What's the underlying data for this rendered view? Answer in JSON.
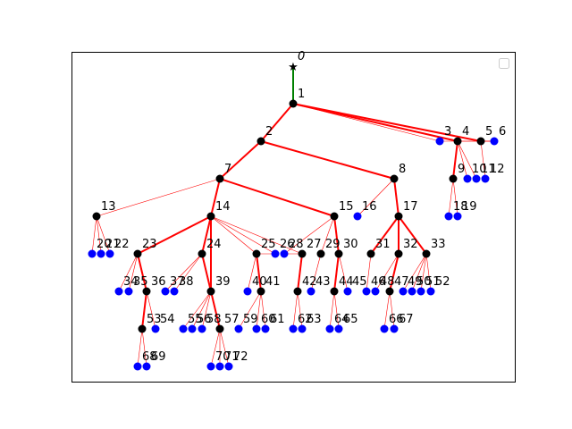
{
  "tree": {
    "edges_thick": [
      [
        0,
        1
      ],
      [
        1,
        2
      ],
      [
        1,
        4
      ],
      [
        1,
        5
      ],
      [
        2,
        7
      ],
      [
        2,
        8
      ],
      [
        4,
        9
      ],
      [
        7,
        14
      ],
      [
        7,
        15
      ],
      [
        8,
        17
      ],
      [
        14,
        23
      ],
      [
        14,
        24
      ],
      [
        14,
        39
      ],
      [
        15,
        30
      ],
      [
        17,
        31
      ],
      [
        17,
        32
      ],
      [
        17,
        33
      ],
      [
        23,
        36
      ],
      [
        24,
        39
      ],
      [
        25,
        41
      ],
      [
        27,
        42
      ],
      [
        30,
        44
      ],
      [
        32,
        47
      ],
      [
        36,
        53
      ],
      [
        39,
        57
      ]
    ],
    "edges_thin": [
      [
        1,
        3
      ],
      [
        3,
        6
      ],
      [
        4,
        6
      ],
      [
        5,
        6
      ],
      [
        8,
        16
      ],
      [
        9,
        18
      ],
      [
        9,
        19
      ],
      [
        4,
        10
      ],
      [
        4,
        11
      ],
      [
        5,
        12
      ],
      [
        7,
        13
      ],
      [
        13,
        20
      ],
      [
        13,
        21
      ],
      [
        13,
        22
      ],
      [
        14,
        25
      ],
      [
        14,
        26
      ],
      [
        14,
        27
      ],
      [
        15,
        28
      ],
      [
        15,
        29
      ],
      [
        23,
        34
      ],
      [
        23,
        35
      ],
      [
        24,
        37
      ],
      [
        24,
        38
      ],
      [
        25,
        40
      ],
      [
        25,
        26
      ],
      [
        27,
        28
      ],
      [
        29,
        43
      ],
      [
        30,
        45
      ],
      [
        31,
        46
      ],
      [
        32,
        48
      ],
      [
        33,
        49
      ],
      [
        33,
        50
      ],
      [
        33,
        51
      ],
      [
        33,
        52
      ],
      [
        36,
        54
      ],
      [
        39,
        55
      ],
      [
        39,
        56
      ],
      [
        39,
        58
      ],
      [
        41,
        59
      ],
      [
        41,
        60
      ],
      [
        41,
        61
      ],
      [
        42,
        62
      ],
      [
        42,
        63
      ],
      [
        44,
        64
      ],
      [
        44,
        65
      ],
      [
        47,
        66
      ],
      [
        47,
        67
      ],
      [
        53,
        68
      ],
      [
        53,
        69
      ],
      [
        57,
        70
      ],
      [
        57,
        71
      ],
      [
        57,
        72
      ]
    ],
    "nodes": [
      {
        "id": "0",
        "type": "root"
      },
      {
        "id": "1",
        "type": "internal"
      },
      {
        "id": "2",
        "type": "internal"
      },
      {
        "id": "3",
        "type": "leaf"
      },
      {
        "id": "4",
        "type": "internal"
      },
      {
        "id": "5",
        "type": "internal"
      },
      {
        "id": "6",
        "type": "leaf"
      },
      {
        "id": "7",
        "type": "internal"
      },
      {
        "id": "8",
        "type": "internal"
      },
      {
        "id": "9",
        "type": "internal"
      },
      {
        "id": "10",
        "type": "leaf"
      },
      {
        "id": "11",
        "type": "leaf"
      },
      {
        "id": "12",
        "type": "leaf"
      },
      {
        "id": "13",
        "type": "internal"
      },
      {
        "id": "14",
        "type": "internal"
      },
      {
        "id": "15",
        "type": "internal"
      },
      {
        "id": "16",
        "type": "leaf"
      },
      {
        "id": "17",
        "type": "internal"
      },
      {
        "id": "18",
        "type": "leaf"
      },
      {
        "id": "19",
        "type": "leaf"
      },
      {
        "id": "20",
        "type": "leaf"
      },
      {
        "id": "21",
        "type": "leaf"
      },
      {
        "id": "22",
        "type": "leaf"
      },
      {
        "id": "23",
        "type": "internal"
      },
      {
        "id": "24",
        "type": "internal"
      },
      {
        "id": "25",
        "type": "internal"
      },
      {
        "id": "26",
        "type": "leaf"
      },
      {
        "id": "27",
        "type": "internal"
      },
      {
        "id": "28",
        "type": "leaf"
      },
      {
        "id": "29",
        "type": "internal"
      },
      {
        "id": "30",
        "type": "internal"
      },
      {
        "id": "31",
        "type": "internal"
      },
      {
        "id": "32",
        "type": "internal"
      },
      {
        "id": "33",
        "type": "internal"
      },
      {
        "id": "34",
        "type": "leaf"
      },
      {
        "id": "35",
        "type": "leaf"
      },
      {
        "id": "36",
        "type": "internal"
      },
      {
        "id": "37",
        "type": "leaf"
      },
      {
        "id": "38",
        "type": "leaf"
      },
      {
        "id": "39",
        "type": "internal"
      },
      {
        "id": "40",
        "type": "leaf"
      },
      {
        "id": "41",
        "type": "internal"
      },
      {
        "id": "42",
        "type": "internal"
      },
      {
        "id": "43",
        "type": "leaf"
      },
      {
        "id": "44",
        "type": "internal"
      },
      {
        "id": "45",
        "type": "leaf"
      },
      {
        "id": "46",
        "type": "leaf"
      },
      {
        "id": "47",
        "type": "internal"
      },
      {
        "id": "48",
        "type": "leaf"
      },
      {
        "id": "49",
        "type": "leaf"
      },
      {
        "id": "50",
        "type": "leaf"
      },
      {
        "id": "51",
        "type": "leaf"
      },
      {
        "id": "52",
        "type": "leaf"
      },
      {
        "id": "53",
        "type": "internal"
      },
      {
        "id": "54",
        "type": "leaf"
      },
      {
        "id": "55",
        "type": "leaf"
      },
      {
        "id": "56",
        "type": "leaf"
      },
      {
        "id": "57",
        "type": "internal"
      },
      {
        "id": "58",
        "type": "leaf"
      },
      {
        "id": "59",
        "type": "leaf"
      },
      {
        "id": "60",
        "type": "leaf"
      },
      {
        "id": "61",
        "type": "leaf"
      },
      {
        "id": "62",
        "type": "leaf"
      },
      {
        "id": "63",
        "type": "leaf"
      },
      {
        "id": "64",
        "type": "leaf"
      },
      {
        "id": "65",
        "type": "leaf"
      },
      {
        "id": "66",
        "type": "leaf"
      },
      {
        "id": "67",
        "type": "leaf"
      },
      {
        "id": "68",
        "type": "leaf"
      },
      {
        "id": "69",
        "type": "leaf"
      },
      {
        "id": "70",
        "type": "leaf"
      },
      {
        "id": "71",
        "type": "leaf"
      },
      {
        "id": "72",
        "type": "leaf"
      }
    ]
  },
  "colors": {
    "root_edge": "#008000",
    "edge": "#ff0000",
    "internal_node": "#000000",
    "leaf_node": "#0000ff",
    "frame": "#000000",
    "background": "#ffffff"
  },
  "legend": {
    "placement": "top-right",
    "entries": []
  }
}
